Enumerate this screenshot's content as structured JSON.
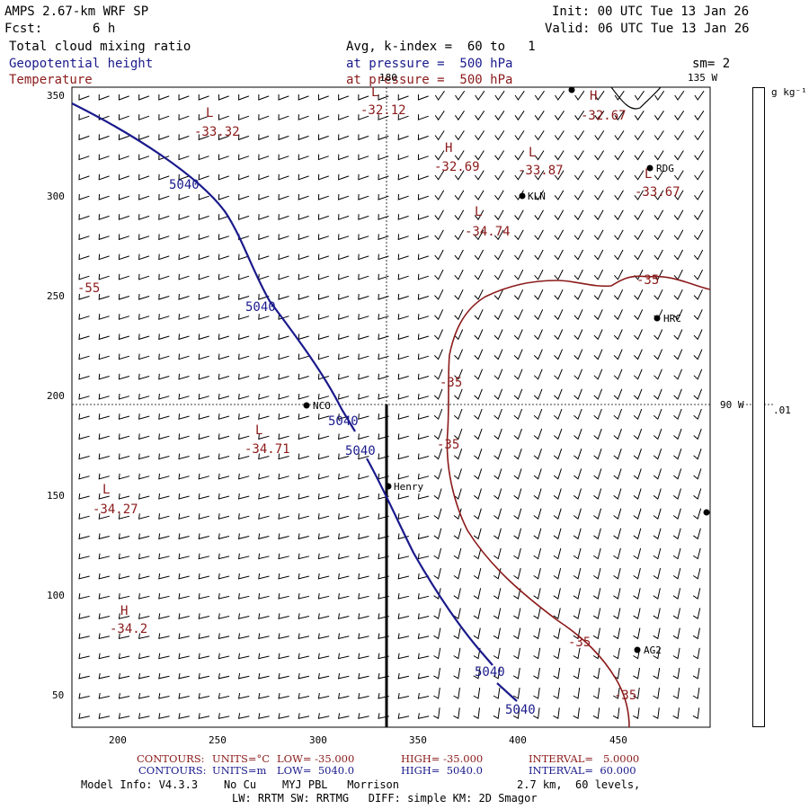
{
  "header": {
    "model": "AMPS 2.67-km WRF SP",
    "fcst_label": "Fcst:",
    "fcst_value": "6 h",
    "init": "Init: 00 UTC Tue 13 Jan 26",
    "valid": "Valid: 06 UTC Tue 13 Jan 26",
    "field1": "Total cloud mixing ratio",
    "field2": "Geopotential height",
    "field3": "Temperature",
    "avg_line": "Avg, k-index =  60 to   1",
    "pressure_line_blue": "at pressure =  500 hPa",
    "pressure_line_red": "at pressure =  500 hPa",
    "smoothing": "sm= 2"
  },
  "map": {
    "meridian_top": "180",
    "meridian_right": "135 W",
    "meridian_east": "90 W",
    "x_ticks": [
      "200",
      "250",
      "300",
      "350",
      "400",
      "450"
    ],
    "y_ticks": [
      "350",
      "300",
      "250",
      "200",
      "150",
      "100",
      "50"
    ],
    "stations": [
      "NCO",
      "Henry",
      "KLN",
      "RDG",
      "HRC",
      "AG2"
    ],
    "height_contour_label": "5040",
    "temp_contour_label": "-35",
    "temp_left_label": "-55",
    "extrema": [
      {
        "mark": "L",
        "value": "-33.32"
      },
      {
        "mark": "L",
        "value": "-32.12"
      },
      {
        "mark": "H",
        "value": "-32.67"
      },
      {
        "mark": "H",
        "value": "-32.69"
      },
      {
        "mark": "L",
        "value": "-33.87"
      },
      {
        "mark": "L",
        "value": "-33.67"
      },
      {
        "mark": "L",
        "value": "-34.74"
      },
      {
        "mark": "L",
        "value": "-34.71"
      },
      {
        "mark": "L",
        "value": "-34.27"
      },
      {
        "mark": "H",
        "value": "-34.2"
      }
    ]
  },
  "colorbar": {
    "units": "g kg⁻¹",
    "tick": ".01"
  },
  "footer": {
    "red_line": {
      "contours": "CONTOURS:",
      "units": "UNITS=°C",
      "low": "LOW= -35.000",
      "high": "HIGH= -35.000",
      "interval": "INTERVAL=   5.0000"
    },
    "blue_line": {
      "contours": "CONTOURS:",
      "units": "UNITS=m",
      "low": "LOW=  5040.0",
      "high": "HIGH=  5040.0",
      "interval": "INTERVAL=  60.000"
    },
    "model_info": "Model Info: V4.3.3    No Cu    MYJ PBL   Morrison",
    "grid_info": "2.7 km,  60 levels,",
    "physics": "LW: RRTM SW: RRTMG   DIFF: simple KM: 2D Smagor"
  },
  "colors": {
    "height": "#1a1a8c",
    "temperature": "#8b1a1a",
    "station": "#000000"
  }
}
